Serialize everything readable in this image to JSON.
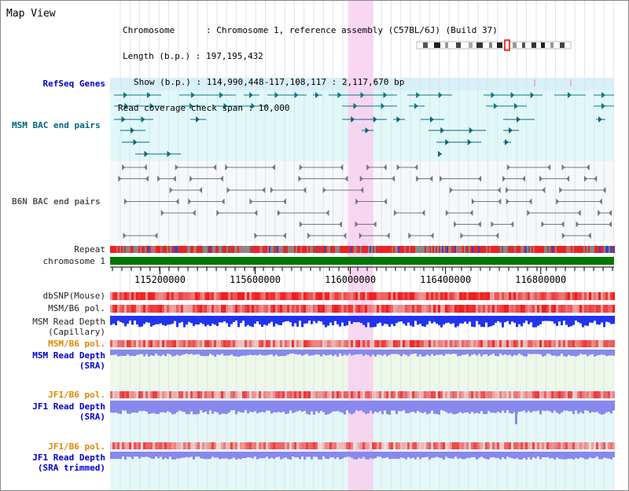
{
  "view": {
    "title": "Map View",
    "chromosome_row": "Chromosome      : Chromosome 1, reference assembly (C57BL/6J) (Build 37)",
    "length_row": "Length (b.p.) : 197,195,432",
    "show_row": "Show (b.p.) : 114,990,448-117,108,117 : 2,117,670 bp",
    "coverage_row": "Read coverage check span : 10,000"
  },
  "tracks": {
    "refseq": "RefSeq Genes",
    "msm_bac": "MSM BAC end pairs",
    "b6n_bac": "B6N BAC end pairs",
    "repeat": "Repeat",
    "chromosome": "chromosome 1",
    "dbsnp": "dbSNP(Mouse)",
    "msm_b6_pol_cap": "MSM/B6 pol.",
    "msm_depth_cap_1": "MSM Read Depth",
    "msm_depth_cap_2": "(Capillary)",
    "msm_b6_pol_sra": "MSM/B6 pol.",
    "msm_depth_sra_1": "MSM Read Depth",
    "msm_depth_sra_2": "(SRA)",
    "jf1_b6_pol_1": "JF1/B6 pol.",
    "jf1_depth_sra_1": "JF1 Read Depth",
    "jf1_depth_sra_2": "(SRA)",
    "jf1_b6_pol_2": "JF1/B6 pol.",
    "jf1_depth_trim_1": "JF1 Read Depth",
    "jf1_depth_trim_2": "(SRA trimmed)"
  },
  "axis": {
    "ticks": [
      "115200000",
      "115600000",
      "116000000",
      "116400000",
      "116800000"
    ],
    "range_bp": [
      114990448,
      117108117
    ]
  },
  "highlight": {
    "start_bp": 116000000,
    "end_bp": 116100000,
    "color": "#f8d0f0"
  },
  "colors": {
    "refseq_band": "#d8f0f8",
    "msm_band": "#e0f8f8",
    "chromosome_bar": "#007700",
    "depth_capillary": "#2233ee",
    "depth_sra": "#8888ee",
    "pol_red": "#ee2222",
    "pol_pale": "#f8c8c8",
    "label_blue": "#0000cc",
    "label_teal": "#006677",
    "label_orange": "#dd8800"
  },
  "icons": {
    "ideogram": "chromosome-ideogram-icon"
  }
}
